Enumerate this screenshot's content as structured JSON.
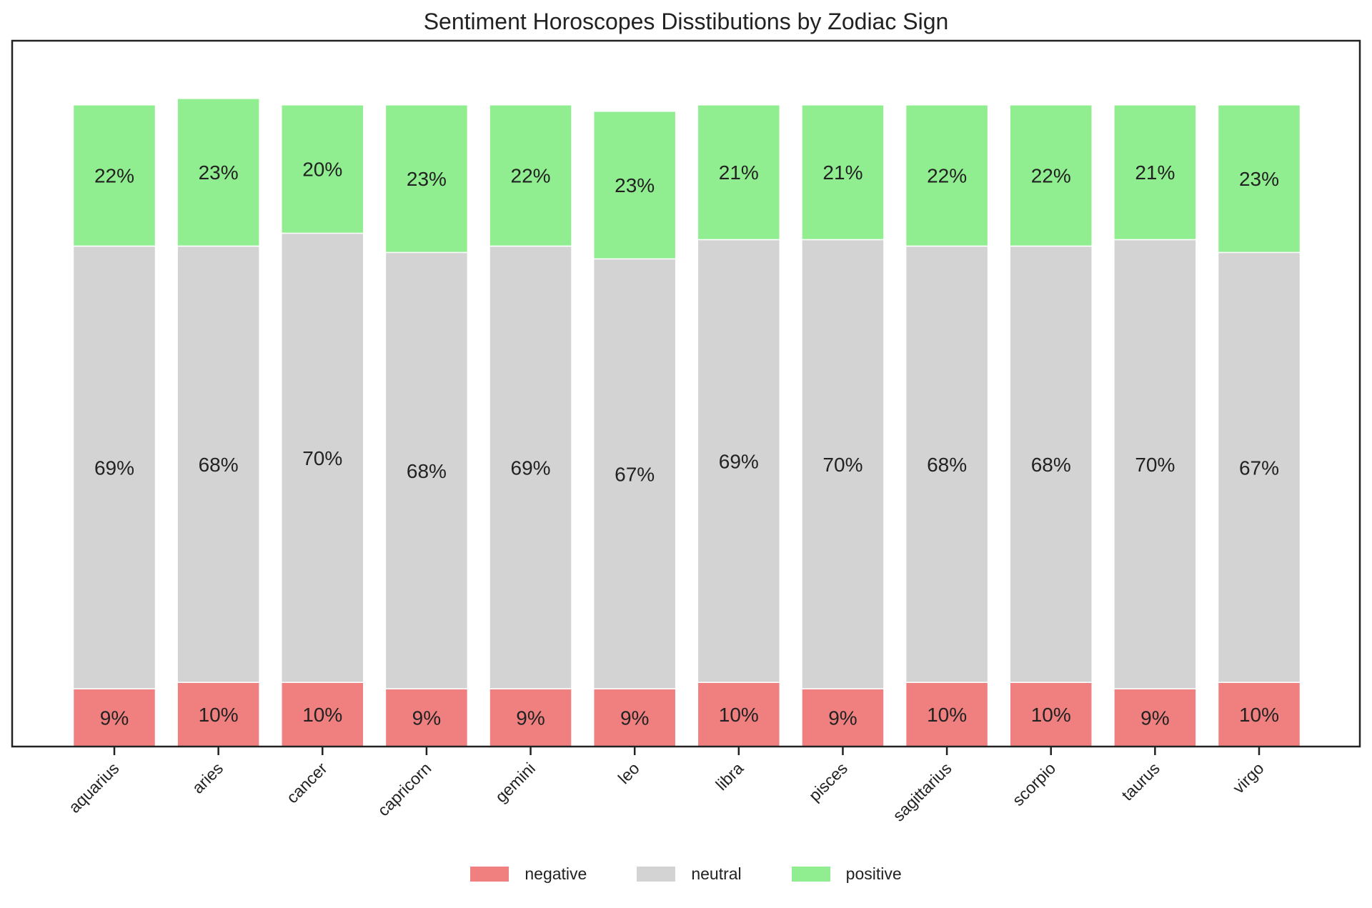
{
  "chart_data": {
    "type": "bar",
    "stacked": true,
    "title": "Sentiment Horoscopes Disstibutions by Zodiac Sign",
    "xlabel": "",
    "ylabel": "",
    "categories": [
      "aquarius",
      "aries",
      "cancer",
      "capricorn",
      "gemini",
      "leo",
      "libra",
      "pisces",
      "sagittarius",
      "scorpio",
      "taurus",
      "virgo"
    ],
    "series": [
      {
        "name": "negative",
        "color": "#f08080",
        "values": [
          9,
          10,
          10,
          9,
          9,
          9,
          10,
          9,
          10,
          10,
          9,
          10
        ],
        "labels": [
          "9%",
          "10%",
          "10%",
          "9%",
          "9%",
          "9%",
          "10%",
          "9%",
          "10%",
          "10%",
          "9%",
          "10%"
        ]
      },
      {
        "name": "neutral",
        "color": "#d3d3d3",
        "values": [
          69,
          68,
          70,
          68,
          69,
          67,
          69,
          70,
          68,
          68,
          70,
          67
        ],
        "labels": [
          "69%",
          "68%",
          "70%",
          "68%",
          "69%",
          "67%",
          "69%",
          "70%",
          "68%",
          "68%",
          "70%",
          "67%"
        ]
      },
      {
        "name": "positive",
        "color": "#90ee90",
        "values": [
          22,
          23,
          20,
          23,
          22,
          23,
          21,
          21,
          22,
          22,
          21,
          23
        ],
        "labels": [
          "22%",
          "23%",
          "20%",
          "23%",
          "22%",
          "23%",
          "21%",
          "21%",
          "22%",
          "22%",
          "21%",
          "23%"
        ]
      }
    ],
    "ylim": [
      0,
      110
    ],
    "legend_position": "bottom-center",
    "grid": false
  }
}
